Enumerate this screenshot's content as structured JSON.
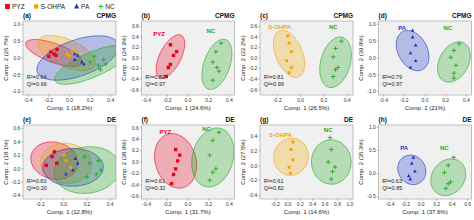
{
  "chart_data": [
    {
      "type": "scatter",
      "title": "(a)",
      "subtitle": "CPMG",
      "xlabel": "Comp. 1 (18.2%)",
      "ylabel": "Comp. 2 (26.7%)",
      "legend": "top",
      "xlim": [
        -0.45,
        0.45
      ],
      "ylim": [
        -1.1,
        1.1
      ],
      "xticks": [
        -0.4,
        -0.2,
        {
          "value": 0,
          "label": "0.0"
        },
        0.2,
        0.4
      ],
      "yticks": [
        {
          "value": -1,
          "label": "-1.0"
        },
        -0.5,
        {
          "value": 0,
          "label": "0.0"
        },
        0.5,
        {
          "value": 1,
          "label": "1.0"
        }
      ],
      "ellipses": [
        {
          "cx": -0.15,
          "cy": 0.15,
          "rx": 0.18,
          "ry": 0.45,
          "angle": 30,
          "color": "#e8001c"
        },
        {
          "cx": -0.03,
          "cy": 0.15,
          "rx": 0.22,
          "ry": 0.55,
          "angle": 20,
          "color": "#f0a500"
        },
        {
          "cx": 0.08,
          "cy": 0.0,
          "rx": 0.32,
          "ry": 0.7,
          "angle": -22,
          "color": "#1a35c8"
        },
        {
          "cx": 0.22,
          "cy": -0.2,
          "rx": 0.22,
          "ry": 0.65,
          "angle": -28,
          "color": "#22aa22"
        }
      ],
      "series": [
        {
          "name": "PYZ",
          "color": "#e8001c",
          "marker": "square",
          "x": [
            -0.18,
            -0.13,
            -0.2,
            -0.12,
            -0.15
          ],
          "values": [
            0.18,
            0.08,
            0.05,
            0.25,
            0.12
          ]
        },
        {
          "name": "S-OHPA",
          "color": "#f0a500",
          "marker": "circle",
          "x": [
            -0.02,
            0.03,
            0.0,
            0.06
          ],
          "values": [
            0.12,
            0.22,
            0.05,
            0.18
          ]
        },
        {
          "name": "PA",
          "color": "#1a35c8",
          "marker": "triangle",
          "x": [
            0.05,
            0.12,
            0.08,
            0.14,
            0.05
          ],
          "values": [
            -0.05,
            -0.12,
            0.08,
            -0.18,
            0.12
          ]
        },
        {
          "name": "NC",
          "color": "#22aa22",
          "marker": "plus",
          "x": [
            0.28,
            0.33,
            0.2,
            0.3,
            0.24,
            0.35
          ],
          "values": [
            -0.22,
            -0.05,
            -0.12,
            -0.35,
            0.05,
            -0.18
          ]
        }
      ],
      "annotations": [
        {
          "text": "R²=0.94"
        },
        {
          "text": "Q²=0.66"
        }
      ]
    },
    {
      "type": "scatter",
      "title": "(b)",
      "subtitle": "CPMG",
      "xlabel": "Comp. 1 (24.6%)",
      "ylabel": "Comp. 2 (24.3%)",
      "xlim": [
        -0.45,
        0.45
      ],
      "ylim": [
        -0.7,
        0.7
      ],
      "xticks": [
        -0.4,
        -0.2,
        {
          "value": 0,
          "label": "0.0"
        },
        0.2,
        0.4
      ],
      "yticks": [
        -0.6,
        -0.4,
        -0.2,
        {
          "value": 0,
          "label": "0.0"
        },
        0.2,
        0.4,
        0.6
      ],
      "ellipses": [
        {
          "cx": -0.17,
          "cy": 0.03,
          "rx": 0.11,
          "ry": 0.42,
          "angle": -12,
          "color": "#e8001c"
        },
        {
          "cx": 0.28,
          "cy": -0.12,
          "rx": 0.13,
          "ry": 0.48,
          "angle": -8,
          "color": "#22aa22"
        }
      ],
      "series": [
        {
          "name": "PYZ",
          "color": "#e8001c",
          "marker": "square",
          "x": [
            -0.17,
            -0.14,
            -0.19,
            -0.11,
            -0.21,
            -0.17
          ],
          "values": [
            0.25,
            0.05,
            -0.18,
            0.12,
            -0.35,
            -0.12
          ]
        },
        {
          "name": "NC",
          "color": "#22aa22",
          "marker": "plus",
          "x": [
            0.27,
            0.24,
            0.3,
            0.24,
            0.32,
            0.28
          ],
          "values": [
            0.12,
            -0.08,
            -0.25,
            -0.42,
            0.28,
            -0.18
          ]
        }
      ],
      "annotations": [
        {
          "text": "R²=0.82"
        },
        {
          "text": "Q²=0.97"
        },
        {
          "text": "PYZ",
          "x": -0.28,
          "y": 0.45,
          "color": "#e8001c"
        },
        {
          "text": "NC",
          "x": 0.22,
          "y": 0.52,
          "color": "#22aa22"
        }
      ]
    },
    {
      "type": "scatter",
      "title": "(c)",
      "subtitle": "CPMG",
      "xlabel": "Comp. 1 (26.5%)",
      "ylabel": "Comp. 2 (22.2%)",
      "xlim": [
        -0.35,
        0.45
      ],
      "ylim": [
        -0.7,
        0.7
      ],
      "xticks": [
        -0.2,
        {
          "value": 0,
          "label": "0.0"
        },
        0.2,
        0.4
      ],
      "yticks": [
        -0.6,
        -0.4,
        -0.2,
        {
          "value": 0,
          "label": "0.0"
        },
        0.2,
        0.4,
        0.6
      ],
      "ellipses": [
        {
          "cx": -0.1,
          "cy": 0.08,
          "rx": 0.12,
          "ry": 0.45,
          "angle": 8,
          "color": "#f0a500"
        },
        {
          "cx": 0.3,
          "cy": -0.08,
          "rx": 0.13,
          "ry": 0.48,
          "angle": -5,
          "color": "#22aa22"
        }
      ],
      "series": [
        {
          "name": "S-OHPA",
          "color": "#f0a500",
          "marker": "circle",
          "x": [
            -0.1,
            -0.08,
            -0.12,
            -0.08,
            -0.11,
            -0.1
          ],
          "values": [
            0.28,
            0.12,
            -0.05,
            -0.18,
            0.42,
            -0.28
          ]
        },
        {
          "name": "NC",
          "color": "#22aa22",
          "marker": "plus",
          "x": [
            0.3,
            0.28,
            0.32,
            0.28,
            0.35,
            0.3
          ],
          "values": [
            0.18,
            0.02,
            -0.18,
            -0.35,
            0.32,
            -0.22
          ]
        }
      ],
      "annotations": [
        {
          "text": "R²=0.81"
        },
        {
          "text": "Q²=0.99"
        },
        {
          "text": "S-OHPA",
          "x": -0.18,
          "y": 0.58,
          "color": "#f0a500"
        },
        {
          "text": "NC",
          "x": 0.28,
          "y": 0.58,
          "color": "#22aa22"
        }
      ]
    },
    {
      "type": "scatter",
      "title": "(d)",
      "subtitle": "CPMG",
      "xlabel": "Comp. 1 (21%)",
      "ylabel": "Comp. 2 (39.9%)",
      "xlim": [
        -0.45,
        0.45
      ],
      "ylim": [
        -1.1,
        1.1
      ],
      "xticks": [
        -0.4,
        -0.2,
        {
          "value": 0,
          "label": "0.0"
        },
        0.2,
        0.4
      ],
      "yticks": [
        {
          "value": -1,
          "label": "-1.0"
        },
        -0.5,
        {
          "value": 0,
          "label": "0.0"
        },
        0.5,
        {
          "value": 1,
          "label": "1.0"
        }
      ],
      "ellipses": [
        {
          "cx": -0.12,
          "cy": 0.22,
          "rx": 0.15,
          "ry": 0.6,
          "angle": 5,
          "color": "#1a35c8"
        },
        {
          "cx": 0.28,
          "cy": -0.12,
          "rx": 0.15,
          "ry": 0.6,
          "angle": -5,
          "color": "#22aa22"
        }
      ],
      "series": [
        {
          "name": "PA",
          "color": "#1a35c8",
          "marker": "triangle",
          "x": [
            -0.12,
            -0.09,
            -0.14,
            -0.09,
            -0.14,
            -0.12
          ],
          "values": [
            0.62,
            0.38,
            0.15,
            -0.08,
            -0.28,
            0.82
          ]
        },
        {
          "name": "NC",
          "color": "#22aa22",
          "marker": "plus",
          "x": [
            0.28,
            0.25,
            0.3,
            0.28,
            0.33,
            0.28
          ],
          "values": [
            0.22,
            0.02,
            -0.22,
            -0.45,
            0.42,
            -0.6
          ]
        }
      ],
      "annotations": [
        {
          "text": "R²=0.79"
        },
        {
          "text": "Q²=0.97"
        },
        {
          "text": "PA",
          "x": -0.22,
          "y": 0.9,
          "color": "#1a35c8"
        },
        {
          "text": "NC",
          "x": 0.22,
          "y": 0.9,
          "color": "#22aa22"
        }
      ]
    },
    {
      "type": "scatter",
      "title": "(e)",
      "subtitle": "DE",
      "xlabel": "Comp. 1 (12.8%)",
      "ylabel": "Comp. 2 (18.1%)",
      "xlim": [
        -0.35,
        0.45
      ],
      "ylim": [
        -0.45,
        0.65
      ],
      "xticks": [
        -0.2,
        {
          "value": 0,
          "label": "0.0"
        },
        0.2,
        0.4
      ],
      "yticks": [
        -0.4,
        -0.2,
        {
          "value": 0,
          "label": "0.0"
        },
        0.2,
        0.4,
        0.6
      ],
      "ellipses": [
        {
          "cx": -0.08,
          "cy": 0.12,
          "rx": 0.2,
          "ry": 0.28,
          "angle": 10,
          "color": "#e8001c"
        },
        {
          "cx": 0.02,
          "cy": 0.08,
          "rx": 0.22,
          "ry": 0.3,
          "angle": 5,
          "color": "#f0a500"
        },
        {
          "cx": 0.08,
          "cy": 0.02,
          "rx": 0.26,
          "ry": 0.28,
          "angle": -5,
          "color": "#1a35c8"
        },
        {
          "cx": 0.2,
          "cy": -0.02,
          "rx": 0.28,
          "ry": 0.35,
          "angle": -12,
          "color": "#22aa22"
        }
      ],
      "series": [
        {
          "name": "PYZ",
          "color": "#e8001c",
          "marker": "square",
          "x": [
            -0.1,
            -0.06,
            -0.15,
            -0.08
          ],
          "values": [
            0.18,
            0.08,
            0.05,
            0.25
          ]
        },
        {
          "name": "S-OHPA",
          "color": "#f0a500",
          "marker": "circle",
          "x": [
            0.02,
            0.06,
            0.0
          ],
          "values": [
            0.12,
            0.02,
            0.2
          ]
        },
        {
          "name": "PA",
          "color": "#1a35c8",
          "marker": "triangle",
          "x": [
            0.08,
            0.12,
            0.02,
            0.1
          ],
          "values": [
            -0.02,
            0.08,
            -0.08,
            0.15
          ]
        },
        {
          "name": "NC",
          "color": "#22aa22",
          "marker": "plus",
          "x": [
            0.22,
            0.28,
            0.18,
            0.32,
            0.2,
            0.3
          ],
          "values": [
            0.08,
            -0.08,
            0.18,
            -0.02,
            -0.12,
            0.12
          ]
        }
      ],
      "annotations": [
        {
          "text": "R²=0.60"
        },
        {
          "text": "Q²=0.20"
        }
      ]
    },
    {
      "type": "scatter",
      "title": "(f)",
      "subtitle": "DE",
      "xlabel": "Comp. 1 (31.7%)",
      "ylabel": "Comp. 2 (38.9%)",
      "xlim": [
        -0.45,
        0.45
      ],
      "ylim": [
        -0.65,
        0.65
      ],
      "xticks": [
        -0.4,
        -0.2,
        {
          "value": 0,
          "label": "0.0"
        },
        0.2,
        0.4
      ],
      "yticks": [
        -0.6,
        -0.4,
        -0.2,
        {
          "value": 0,
          "label": "0.0"
        },
        0.2,
        0.4,
        0.6
      ],
      "ellipses": [
        {
          "cx": -0.12,
          "cy": 0.02,
          "rx": 0.2,
          "ry": 0.48,
          "angle": 5,
          "color": "#e8001c"
        },
        {
          "cx": 0.24,
          "cy": 0.08,
          "rx": 0.2,
          "ry": 0.52,
          "angle": -5,
          "color": "#22aa22"
        }
      ],
      "series": [
        {
          "name": "PYZ",
          "color": "#e8001c",
          "marker": "square",
          "x": [
            -0.12,
            -0.1,
            -0.14,
            -0.08,
            -0.16,
            -0.12
          ],
          "values": [
            0.22,
            0.02,
            -0.22,
            0.12,
            -0.38,
            -0.12
          ]
        },
        {
          "name": "NC",
          "color": "#22aa22",
          "marker": "plus",
          "x": [
            0.24,
            0.21,
            0.27,
            0.21,
            0.3,
            0.24
          ],
          "values": [
            0.38,
            0.12,
            -0.12,
            -0.32,
            0.52,
            -0.18
          ]
        }
      ],
      "annotations": [
        {
          "text": "R²=0.61"
        },
        {
          "text": "Q²=0.32"
        },
        {
          "text": "PYZ",
          "x": -0.22,
          "y": 0.52,
          "color": "#e8001c"
        },
        {
          "text": "NC",
          "x": 0.18,
          "y": 0.58,
          "color": "#22aa22"
        }
      ]
    },
    {
      "type": "scatter",
      "title": "(g)",
      "subtitle": "DE",
      "xlabel": "Comp. 1 (14.6%)",
      "ylabel": "Comp. 2 (27.5%)",
      "xlim": [
        -0.45,
        1.05
      ],
      "ylim": [
        -0.45,
        0.55
      ],
      "xticks": [
        -0.2,
        {
          "value": 0,
          "label": "0.0"
        },
        0.2,
        0.4,
        0.6,
        0.8,
        {
          "value": 1,
          "label": "1.0"
        }
      ],
      "yticks": [
        -0.4,
        -0.2,
        {
          "value": 0,
          "label": "0.0"
        },
        0.2,
        0.4
      ],
      "ellipses": [
        {
          "cx": 0.05,
          "cy": 0.12,
          "rx": 0.28,
          "ry": 0.25,
          "angle": 10,
          "color": "#f0a500"
        },
        {
          "cx": 0.7,
          "cy": 0.05,
          "rx": 0.32,
          "ry": 0.3,
          "angle": -5,
          "color": "#22aa22"
        }
      ],
      "series": [
        {
          "name": "S-OHPA",
          "color": "#f0a500",
          "marker": "circle",
          "x": [
            0.05,
            0.08,
            0.02,
            0.08,
            0.04
          ],
          "values": [
            0.22,
            0.08,
            -0.02,
            0.32,
            -0.1
          ]
        },
        {
          "name": "NC",
          "color": "#22aa22",
          "marker": "plus",
          "x": [
            0.7,
            0.65,
            0.72,
            0.68,
            0.76,
            0.7
          ],
          "values": [
            0.22,
            0.05,
            -0.08,
            0.38,
            -0.02,
            -0.18
          ]
        }
      ],
      "annotations": [
        {
          "text": "R²=0.61"
        },
        {
          "text": "Q²=0.82"
        },
        {
          "text": "S-OHPA",
          "x": -0.12,
          "y": 0.42,
          "color": "#f0a500"
        },
        {
          "text": "NC",
          "x": 0.65,
          "y": 0.48,
          "color": "#22aa22"
        }
      ]
    },
    {
      "type": "scatter",
      "title": "(h)",
      "subtitle": "DE",
      "xlabel": "Comp. 1 (37.6%)",
      "ylabel": "Comp. 2 (35.3%)",
      "xlim": [
        -0.55,
        0.65
      ],
      "ylim": [
        -0.55,
        1.05
      ],
      "xticks": [
        -0.4,
        -0.2,
        {
          "value": 0,
          "label": "0.0"
        },
        0.2,
        0.4,
        0.6
      ],
      "yticks": [
        -0.5,
        {
          "value": 0,
          "label": "0.0"
        },
        0.5,
        {
          "value": 1,
          "label": "1.0"
        }
      ],
      "ellipses": [
        {
          "cx": -0.12,
          "cy": 0.08,
          "rx": 0.18,
          "ry": 0.32,
          "angle": 5,
          "color": "#1a35c8"
        },
        {
          "cx": 0.35,
          "cy": -0.08,
          "rx": 0.22,
          "ry": 0.4,
          "angle": -8,
          "color": "#22aa22"
        }
      ],
      "series": [
        {
          "name": "PA",
          "color": "#1a35c8",
          "marker": "triangle",
          "x": [
            -0.12,
            -0.08,
            -0.16,
            -0.1,
            -0.14
          ],
          "values": [
            0.22,
            0.05,
            -0.05,
            0.35,
            -0.12
          ]
        },
        {
          "name": "NC",
          "color": "#22aa22",
          "marker": "plus",
          "x": [
            0.35,
            0.3,
            0.38,
            0.32,
            0.42,
            0.35
          ],
          "values": [
            0.18,
            0.02,
            -0.18,
            -0.32,
            0.35,
            -0.22
          ]
        }
      ],
      "annotations": [
        {
          "text": "R²=0.63"
        },
        {
          "text": "Q²=0.85"
        },
        {
          "text": "PA",
          "x": -0.22,
          "y": 0.55,
          "color": "#1a35c8"
        },
        {
          "text": "NC",
          "x": 0.3,
          "y": 0.55,
          "color": "#22aa22"
        }
      ]
    }
  ]
}
